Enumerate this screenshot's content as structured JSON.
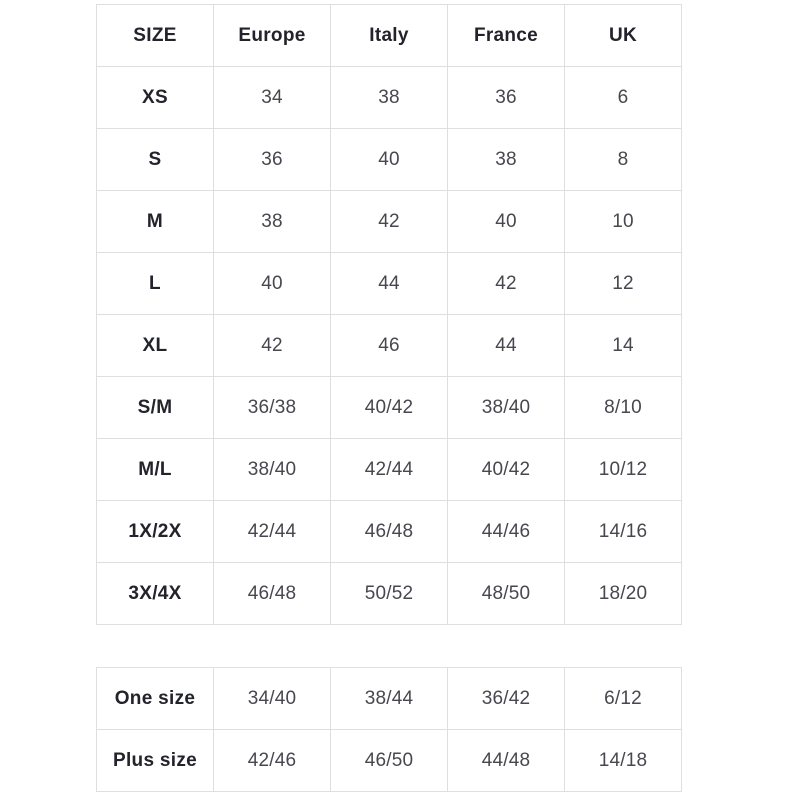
{
  "page": {
    "background": "#ffffff"
  },
  "colors": {
    "border": "#dfdfdf",
    "header_text": "#23232b",
    "label_text": "#23232b",
    "value_text": "#47474f"
  },
  "size_chart": {
    "headers": [
      "SIZE",
      "Europe",
      "Italy",
      "France",
      "UK"
    ],
    "rows": [
      [
        "XS",
        "34",
        "38",
        "36",
        "6"
      ],
      [
        "S",
        "36",
        "40",
        "38",
        "8"
      ],
      [
        "M",
        "38",
        "42",
        "40",
        "10"
      ],
      [
        "L",
        "40",
        "44",
        "42",
        "12"
      ],
      [
        "XL",
        "42",
        "46",
        "44",
        "14"
      ],
      [
        "S/M",
        "36/38",
        "40/42",
        "38/40",
        "8/10"
      ],
      [
        "M/L",
        "38/40",
        "42/44",
        "40/42",
        "10/12"
      ],
      [
        "1X/2X",
        "42/44",
        "46/48",
        "44/46",
        "14/16"
      ],
      [
        "3X/4X",
        "46/48",
        "50/52",
        "48/50",
        "18/20"
      ]
    ]
  },
  "special_sizes": {
    "rows": [
      [
        "One size",
        "34/40",
        "38/44",
        "36/42",
        "6/12"
      ],
      [
        "Plus size",
        "42/46",
        "46/50",
        "44/48",
        "14/18"
      ]
    ]
  }
}
